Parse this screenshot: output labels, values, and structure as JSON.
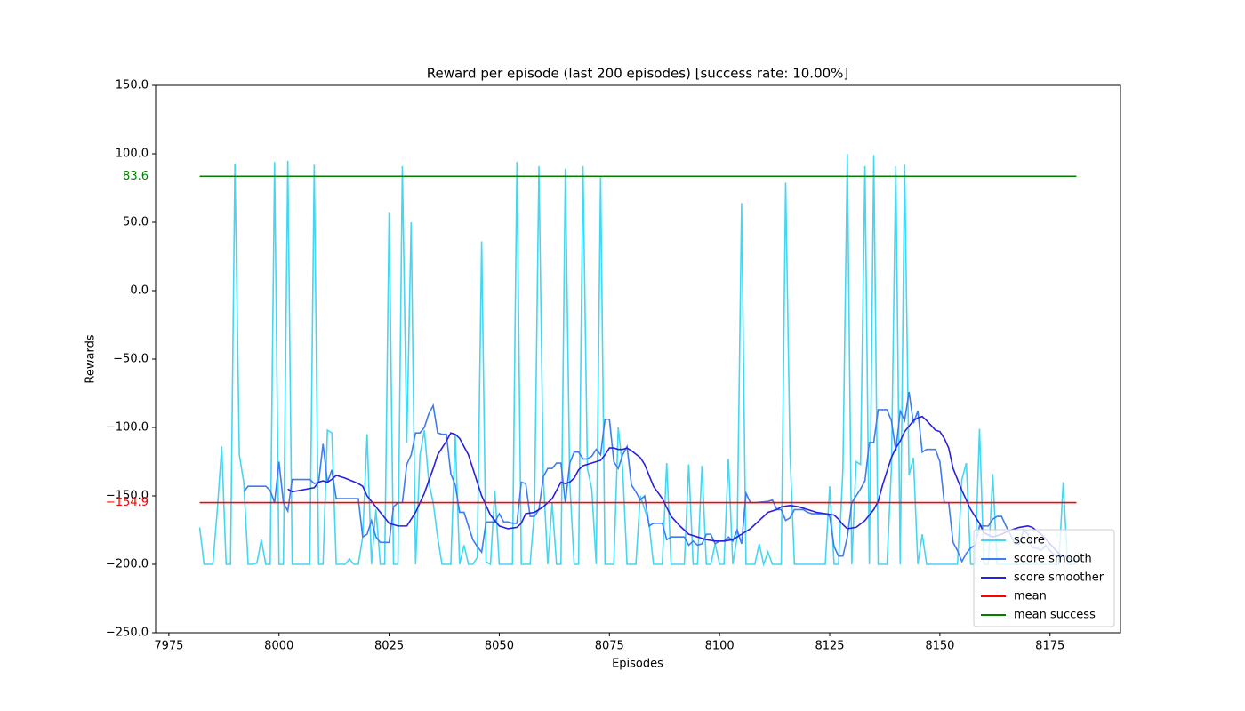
{
  "chart_data": {
    "type": "line",
    "title": "Reward per episode (last 200 episodes) [success rate: 10.00%]",
    "x_label": "Episodes",
    "y_label": "Rewards",
    "xlim": [
      7972,
      8191
    ],
    "ylim": [
      -250,
      150
    ],
    "xticks": [
      7975,
      8000,
      8025,
      8050,
      8075,
      8100,
      8125,
      8150,
      8175
    ],
    "yticks": [
      {
        "value": -250,
        "label": "−250.0"
      },
      {
        "value": -200,
        "label": "−200.0"
      },
      {
        "value": -150,
        "label": "−150.0"
      },
      {
        "value": -100,
        "label": "−100.0"
      },
      {
        "value": -50,
        "label": "−50.0"
      },
      {
        "value": 0,
        "label": "0.0"
      },
      {
        "value": 50,
        "label": "50.0"
      },
      {
        "value": 100,
        "label": "100.0"
      },
      {
        "value": 150,
        "label": "150.0"
      }
    ],
    "legend": "lower right",
    "series": [
      {
        "name": "score",
        "color": "#45d6f2",
        "x": [
          7982,
          7983,
          7984,
          7985,
          7986,
          7987,
          7988,
          7989,
          7990,
          7991,
          7992,
          7993,
          7994,
          7995,
          7996,
          7997,
          7998,
          7999,
          8000,
          8001,
          8002,
          8003,
          8004,
          8005,
          8006,
          8007,
          8008,
          8009,
          8010,
          8011,
          8012,
          8013,
          8014,
          8015,
          8016,
          8017,
          8018,
          8019,
          8020,
          8021,
          8022,
          8023,
          8024,
          8025,
          8026,
          8027,
          8028,
          8029,
          8030,
          8031,
          8032,
          8033,
          8034,
          8035,
          8036,
          8037,
          8038,
          8039,
          8040,
          8041,
          8042,
          8043,
          8044,
          8045,
          8046,
          8047,
          8048,
          8049,
          8050,
          8051,
          8052,
          8053,
          8054,
          8055,
          8056,
          8057,
          8058,
          8059,
          8060,
          8061,
          8062,
          8063,
          8064,
          8065,
          8066,
          8067,
          8068,
          8069,
          8070,
          8071,
          8072,
          8073,
          8074,
          8075,
          8076,
          8077,
          8078,
          8079,
          8080,
          8081,
          8082,
          8083,
          8084,
          8085,
          8086,
          8087,
          8088,
          8089,
          8090,
          8091,
          8092,
          8093,
          8094,
          8095,
          8096,
          8097,
          8098,
          8099,
          8100,
          8101,
          8102,
          8103,
          8104,
          8105,
          8106,
          8107,
          8108,
          8109,
          8110,
          8111,
          8112,
          8113,
          8114,
          8115,
          8116,
          8117,
          8118,
          8119,
          8120,
          8121,
          8122,
          8123,
          8124,
          8125,
          8126,
          8127,
          8128,
          8129,
          8130,
          8131,
          8132,
          8133,
          8134,
          8135,
          8136,
          8137,
          8138,
          8139,
          8140,
          8141,
          8142,
          8143,
          8144,
          8145,
          8146,
          8147,
          8148,
          8149,
          8150,
          8151,
          8152,
          8153,
          8154,
          8155,
          8156,
          8157,
          8158,
          8159,
          8160,
          8161,
          8162,
          8163,
          8164,
          8165,
          8166,
          8167,
          8168,
          8169,
          8170,
          8171,
          8172,
          8173,
          8174,
          8175,
          8176,
          8177,
          8178,
          8179,
          8180,
          8181
        ],
        "values": [
          -173,
          -200,
          -200,
          -200,
          -160,
          -114,
          -200,
          -200,
          93,
          -120,
          -140,
          -200,
          -200,
          -199,
          -182,
          -200,
          -200,
          94,
          -200,
          -200,
          95,
          -200,
          -200,
          -200,
          -200,
          -200,
          92,
          -200,
          -200,
          -102,
          -104,
          -200,
          -200,
          -200,
          -196,
          -200,
          -200,
          -180,
          -105,
          -200,
          -160,
          -200,
          -200,
          57,
          -200,
          -200,
          91,
          -111,
          50,
          -200,
          -120,
          -102,
          -140,
          -155,
          -180,
          -200,
          -200,
          -200,
          -105,
          -200,
          -186,
          -200,
          -200,
          -195,
          36,
          -198,
          -200,
          -146,
          -200,
          -200,
          -200,
          -200,
          94,
          -200,
          -200,
          -200,
          -160,
          91,
          -136,
          -200,
          -155,
          -200,
          -200,
          89,
          -140,
          -200,
          -200,
          91,
          -130,
          -145,
          -200,
          83,
          -200,
          -200,
          -200,
          -100,
          -130,
          -200,
          -200,
          -200,
          -150,
          -160,
          -170,
          -200,
          -200,
          -200,
          -126,
          -200,
          -200,
          -200,
          -200,
          -127,
          -200,
          -200,
          -128,
          -200,
          -200,
          -185,
          -200,
          -200,
          -123,
          -200,
          -180,
          64,
          -200,
          -200,
          -200,
          -185,
          -200,
          -191,
          -200,
          -200,
          -200,
          79,
          -120,
          -200,
          -200,
          -200,
          -200,
          -200,
          -200,
          -200,
          -200,
          -143,
          -200,
          -200,
          -130,
          100,
          -200,
          -125,
          -127,
          91,
          -200,
          99,
          -200,
          -200,
          -200,
          -130,
          91,
          -200,
          92,
          -135,
          -122,
          -200,
          -178,
          -200,
          -200,
          -200,
          -200,
          -200,
          -200,
          -200,
          -200,
          -138,
          -126,
          -200,
          -200,
          -101,
          -200,
          -200,
          -134,
          -200,
          -200,
          -200,
          -200,
          -200,
          -200,
          -200,
          -200,
          -200,
          -200,
          -200,
          -200,
          -200,
          -200,
          -200,
          -140,
          -200,
          -200,
          -200
        ]
      },
      {
        "name": "score smooth",
        "color": "#3d7cf2",
        "x": [
          7992,
          7993,
          7997,
          7998,
          7999,
          8000,
          8001,
          8002,
          8003,
          8007,
          8008,
          8009,
          8010,
          8011,
          8012,
          8013,
          8018,
          8019,
          8020,
          8021,
          8022,
          8023,
          8025,
          8026,
          8027,
          8028,
          8029,
          8030,
          8031,
          8032,
          8033,
          8034,
          8035,
          8036,
          8037,
          8038,
          8039,
          8040,
          8041,
          8042,
          8043,
          8044,
          8045,
          8046,
          8047,
          8048,
          8049,
          8050,
          8051,
          8052,
          8053,
          8054,
          8055,
          8056,
          8057,
          8058,
          8059,
          8060,
          8061,
          8062,
          8063,
          8064,
          8065,
          8066,
          8067,
          8068,
          8069,
          8070,
          8071,
          8072,
          8073,
          8074,
          8075,
          8076,
          8077,
          8078,
          8079,
          8080,
          8081,
          8082,
          8083,
          8084,
          8085,
          8086,
          8087,
          8088,
          8089,
          8092,
          8093,
          8094,
          8095,
          8096,
          8097,
          8098,
          8099,
          8100,
          8101,
          8102,
          8103,
          8104,
          8105,
          8106,
          8107,
          8108,
          8111,
          8112,
          8113,
          8114,
          8115,
          8116,
          8117,
          8118,
          8119,
          8120,
          8121,
          8124,
          8125,
          8126,
          8127,
          8128,
          8129,
          8130,
          8131,
          8132,
          8133,
          8134,
          8135,
          8136,
          8137,
          8138,
          8139,
          8140,
          8141,
          8142,
          8143,
          8144,
          8145,
          8146,
          8147,
          8148,
          8149,
          8150,
          8151,
          8152,
          8153,
          8154,
          8155,
          8156,
          8157,
          8158,
          8159,
          8160,
          8161,
          8162,
          8163,
          8164,
          8165,
          8166,
          8167,
          8168,
          8169,
          8170,
          8171,
          8172,
          8173,
          8174,
          8175,
          8176,
          8177,
          8178,
          8179,
          8180,
          8181
        ],
        "values": [
          -147,
          -143,
          -143,
          -146,
          -155,
          -125,
          -155,
          -161,
          -138,
          -138,
          -141,
          -140,
          -112,
          -140,
          -131,
          -152,
          -152,
          -180,
          -178,
          -168,
          -180,
          -184,
          -184,
          -158,
          -155,
          -155,
          -127,
          -120,
          -104,
          -104,
          -100,
          -90,
          -84,
          -104,
          -105,
          -105,
          -134,
          -142,
          -162,
          -162,
          -172,
          -182,
          -187,
          -191,
          -169,
          -169,
          -169,
          -163,
          -169,
          -169,
          -170,
          -170,
          -140,
          -141,
          -165,
          -165,
          -160,
          -136,
          -130,
          -130,
          -126,
          -126,
          -155,
          -126,
          -118,
          -118,
          -123,
          -123,
          -121,
          -116,
          -120,
          -94,
          -94,
          -125,
          -130,
          -120,
          -114,
          -142,
          -147,
          -153,
          -150,
          -172,
          -170,
          -170,
          -170,
          -182,
          -180,
          -180,
          -186,
          -183,
          -186,
          -185,
          -178,
          -178,
          -185,
          -183,
          -183,
          -180,
          -183,
          -175,
          -185,
          -148,
          -155,
          -155,
          -154,
          -153,
          -160,
          -160,
          -168,
          -166,
          -160,
          -160,
          -160,
          -162,
          -163,
          -163,
          -165,
          -187,
          -194,
          -194,
          -180,
          -155,
          -150,
          -145,
          -139,
          -111,
          -111,
          -87,
          -87,
          -87,
          -95,
          -117,
          -88,
          -95,
          -74,
          -97,
          -88,
          -118,
          -116,
          -116,
          -116,
          -125,
          -155,
          -155,
          -184,
          -190,
          -198,
          -192,
          -188,
          -186,
          -172,
          -172,
          -172,
          -167,
          -165,
          -165,
          -172,
          -178,
          -185,
          -185,
          -175,
          -178,
          -188,
          -188,
          -190,
          -186,
          -190,
          -193,
          -195,
          -193,
          -195,
          -197,
          -198
        ]
      },
      {
        "name": "score smoother",
        "color": "#2a1fe0",
        "x": [
          8002,
          8003,
          8008,
          8009,
          8010,
          8011,
          8012,
          8013,
          8015,
          8018,
          8019,
          8020,
          8022,
          8024,
          8025,
          8027,
          8029,
          8031,
          8033,
          8035,
          8036,
          8038,
          8039,
          8040,
          8041,
          8043,
          8045,
          8046,
          8048,
          8050,
          8052,
          8054,
          8055,
          8056,
          8058,
          8060,
          8062,
          8064,
          8065,
          8066,
          8067,
          8068,
          8069,
          8071,
          8073,
          8074,
          8075,
          8076,
          8077,
          8078,
          8079,
          8080,
          8082,
          8083,
          8085,
          8087,
          8089,
          8091,
          8093,
          8095,
          8097,
          8099,
          8101,
          8103,
          8104,
          8105,
          8107,
          8109,
          8111,
          8113,
          8114,
          8116,
          8118,
          8120,
          8122,
          8124,
          8126,
          8127,
          8128,
          8129,
          8131,
          8133,
          8135,
          8136,
          8137,
          8139,
          8140,
          8141,
          8142,
          8144,
          8145,
          8146,
          8147,
          8149,
          8150,
          8151,
          8152,
          8153,
          8155,
          8157,
          8159,
          8160,
          8162,
          8164,
          8166,
          8168,
          8170,
          8171,
          8173,
          8175,
          8177,
          8178
        ],
        "values": [
          -145,
          -147,
          -144,
          -140,
          -139,
          -140,
          -138,
          -135,
          -137,
          -141,
          -143,
          -150,
          -158,
          -166,
          -170,
          -172,
          -172,
          -162,
          -148,
          -130,
          -120,
          -110,
          -104,
          -105,
          -108,
          -120,
          -140,
          -150,
          -164,
          -172,
          -174,
          -173,
          -170,
          -163,
          -162,
          -158,
          -152,
          -140,
          -141,
          -140,
          -137,
          -131,
          -128,
          -126,
          -124,
          -120,
          -115,
          -115,
          -116,
          -116,
          -115,
          -117,
          -122,
          -127,
          -143,
          -152,
          -165,
          -172,
          -178,
          -180,
          -182,
          -183,
          -183,
          -182,
          -180,
          -178,
          -174,
          -168,
          -162,
          -160,
          -158,
          -157,
          -158,
          -160,
          -162,
          -163,
          -164,
          -167,
          -171,
          -174,
          -173,
          -168,
          -160,
          -154,
          -142,
          -122,
          -115,
          -110,
          -103,
          -95,
          -93,
          -92,
          -95,
          -102,
          -103,
          -108,
          -115,
          -130,
          -146,
          -160,
          -170,
          -177,
          -180,
          -178,
          -175,
          -173,
          -172,
          -173,
          -178,
          -185,
          -192,
          -195
        ]
      }
    ],
    "hlines": [
      {
        "name": "mean",
        "color": "#ff0000",
        "value": -154.9,
        "label": "−154.9"
      },
      {
        "name": "mean success",
        "color": "#008000",
        "value": 83.6
      }
    ]
  }
}
